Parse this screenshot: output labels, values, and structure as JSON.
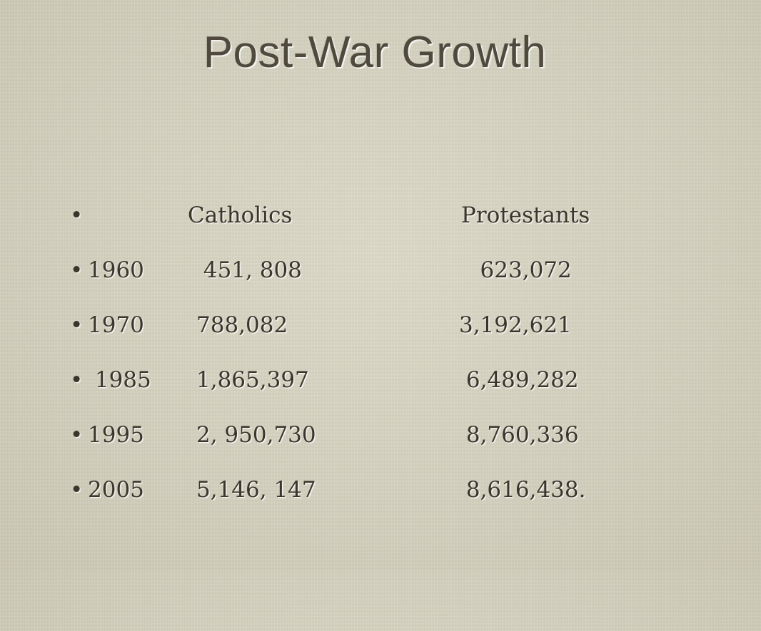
{
  "slide": {
    "title": "Post-War Growth",
    "bullet": "•",
    "header": {
      "year": "",
      "catholics": "Catholics",
      "protestants": "Protestants"
    },
    "rows": [
      {
        "year": "1960",
        "catholics": " 451, 808",
        "protestants": "   623,072"
      },
      {
        "year": "1970",
        "catholics": "788,082",
        "protestants": "3,192,621"
      },
      {
        "year": " 1985",
        "catholics": "1,865,397",
        "protestants": " 6,489,282"
      },
      {
        "year": "1995",
        "catholics": "2, 950,730",
        "protestants": " 8,760,336"
      },
      {
        "year": "2005",
        "catholics": "5,146, 147",
        "protestants": " 8,616,438."
      }
    ]
  }
}
